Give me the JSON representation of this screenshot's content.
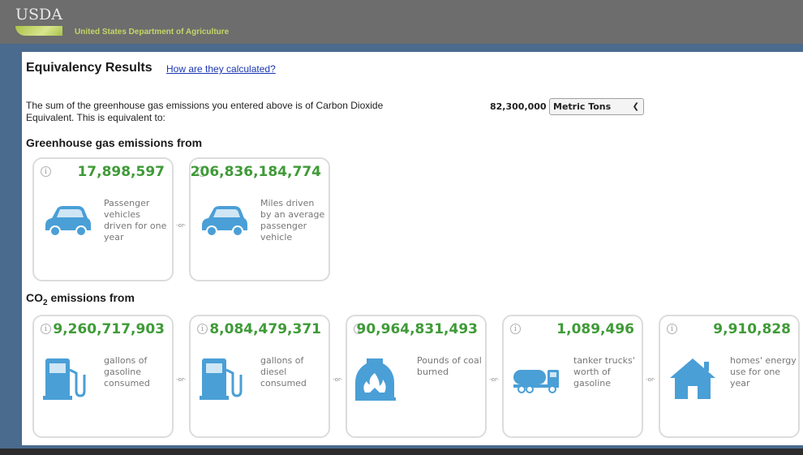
{
  "header": {
    "logo_text": "USDA",
    "agency": "United States Department of Agriculture"
  },
  "main": {
    "title": "Equivalency Results",
    "how_link": "How are they calculated?",
    "intro": "The sum of the greenhouse gas emissions you entered above is of Carbon Dioxide Equivalent. This is equivalent to:",
    "amount": "82,300,000",
    "unit_selected": "Metric Tons",
    "or_label": "-or-"
  },
  "ghg_section": {
    "title": "Greenhouse gas emissions from",
    "cards": [
      {
        "value": "17,898,597",
        "desc": "Passenger vehicles driven for one year",
        "icon": "car-icon"
      },
      {
        "value": "206,836,184,774",
        "desc": "Miles driven by an average passenger vehicle",
        "icon": "car-icon"
      }
    ]
  },
  "co2_section": {
    "title_prefix": "CO",
    "title_sub": "2",
    "title_suffix": " emissions from",
    "cards": [
      {
        "value": "9,260,717,903",
        "desc": "gallons of gasoline consumed",
        "icon": "gas-pump-icon"
      },
      {
        "value": "8,084,479,371",
        "desc": "gallons of diesel consumed",
        "icon": "gas-pump-icon"
      },
      {
        "value": "90,964,831,493",
        "desc": "Pounds of coal burned",
        "icon": "coal-furnace-icon"
      },
      {
        "value": "1,089,496",
        "desc": "tanker trucks' worth of gasoline",
        "icon": "tanker-truck-icon"
      },
      {
        "value": "9,910,828",
        "desc": "homes' energy use for one year",
        "icon": "house-icon"
      }
    ]
  },
  "colors": {
    "value_green": "#3f9b37",
    "icon_blue": "#4a9fd6",
    "header_gray": "#6d6d6d",
    "link_blue": "#1a35b3"
  }
}
